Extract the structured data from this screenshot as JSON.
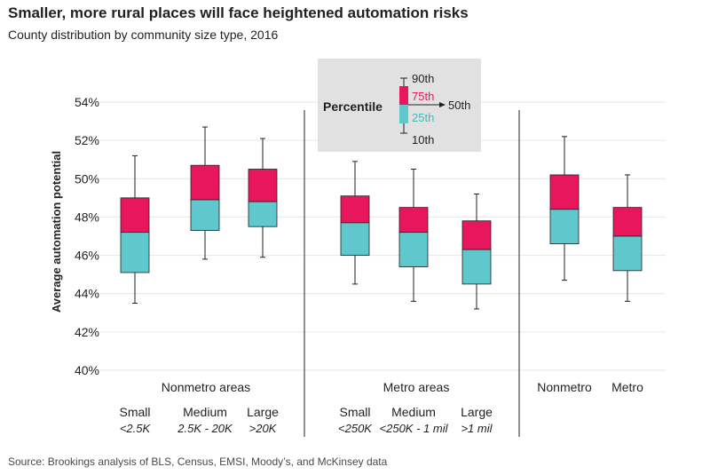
{
  "title": "Smaller, more rural places will face heightened automation risks",
  "subtitle": "County distribution by community size type, 2016",
  "source": "Source: Brookings analysis of BLS, Census, EMSI, Moody’s, and McKinsey data",
  "colors": {
    "upper_box": "#e8175d",
    "lower_box": "#5ec8cc",
    "whisker": "#231f20",
    "grid": "#e6e6e6",
    "divider": "#231f20",
    "legend_bg": "#e1e1e1",
    "label_75": "#e8175d",
    "label_25": "#3fb8bd"
  },
  "legend": {
    "title": "Percentile",
    "labels": {
      "p90": "90th",
      "p75": "75th",
      "p50": "50th",
      "p25": "25th",
      "p10": "10th"
    }
  },
  "chart_data": {
    "type": "boxplot",
    "ylabel": "Average automation potential",
    "ylim": [
      40,
      54
    ],
    "yticks": [
      "40%",
      "42%",
      "44%",
      "46%",
      "48%",
      "50%",
      "52%",
      "54%"
    ],
    "grid": true,
    "groups": [
      {
        "name": "Nonmetro areas",
        "boxes": [
          {
            "label": "Small",
            "sublabel": "<2.5K",
            "p10": 43.5,
            "p25": 45.1,
            "p50": 47.2,
            "p75": 49.0,
            "p90": 51.2
          },
          {
            "label": "Medium",
            "sublabel": "2.5K - 20K",
            "p10": 45.8,
            "p25": 47.3,
            "p50": 48.9,
            "p75": 50.7,
            "p90": 52.7
          },
          {
            "label": "Large",
            "sublabel": ">20K",
            "p10": 45.9,
            "p25": 47.5,
            "p50": 48.8,
            "p75": 50.5,
            "p90": 52.1
          }
        ]
      },
      {
        "name": "Metro areas",
        "boxes": [
          {
            "label": "Small",
            "sublabel": "<250K",
            "p10": 44.5,
            "p25": 46.0,
            "p50": 47.7,
            "p75": 49.1,
            "p90": 50.9
          },
          {
            "label": "Medium",
            "sublabel": "<250K - 1 mil",
            "p10": 43.6,
            "p25": 45.4,
            "p50": 47.2,
            "p75": 48.5,
            "p90": 50.5
          },
          {
            "label": "Large",
            "sublabel": ">1 mil",
            "p10": 43.2,
            "p25": 44.5,
            "p50": 46.3,
            "p75": 47.8,
            "p90": 49.2
          }
        ]
      },
      {
        "name": "",
        "boxes": [
          {
            "label": "Nonmetro",
            "sublabel": "",
            "p10": 44.7,
            "p25": 46.6,
            "p50": 48.4,
            "p75": 50.2,
            "p90": 52.2
          },
          {
            "label": "Metro",
            "sublabel": "",
            "p10": 43.6,
            "p25": 45.2,
            "p50": 47.0,
            "p75": 48.5,
            "p90": 50.2
          }
        ]
      }
    ]
  }
}
